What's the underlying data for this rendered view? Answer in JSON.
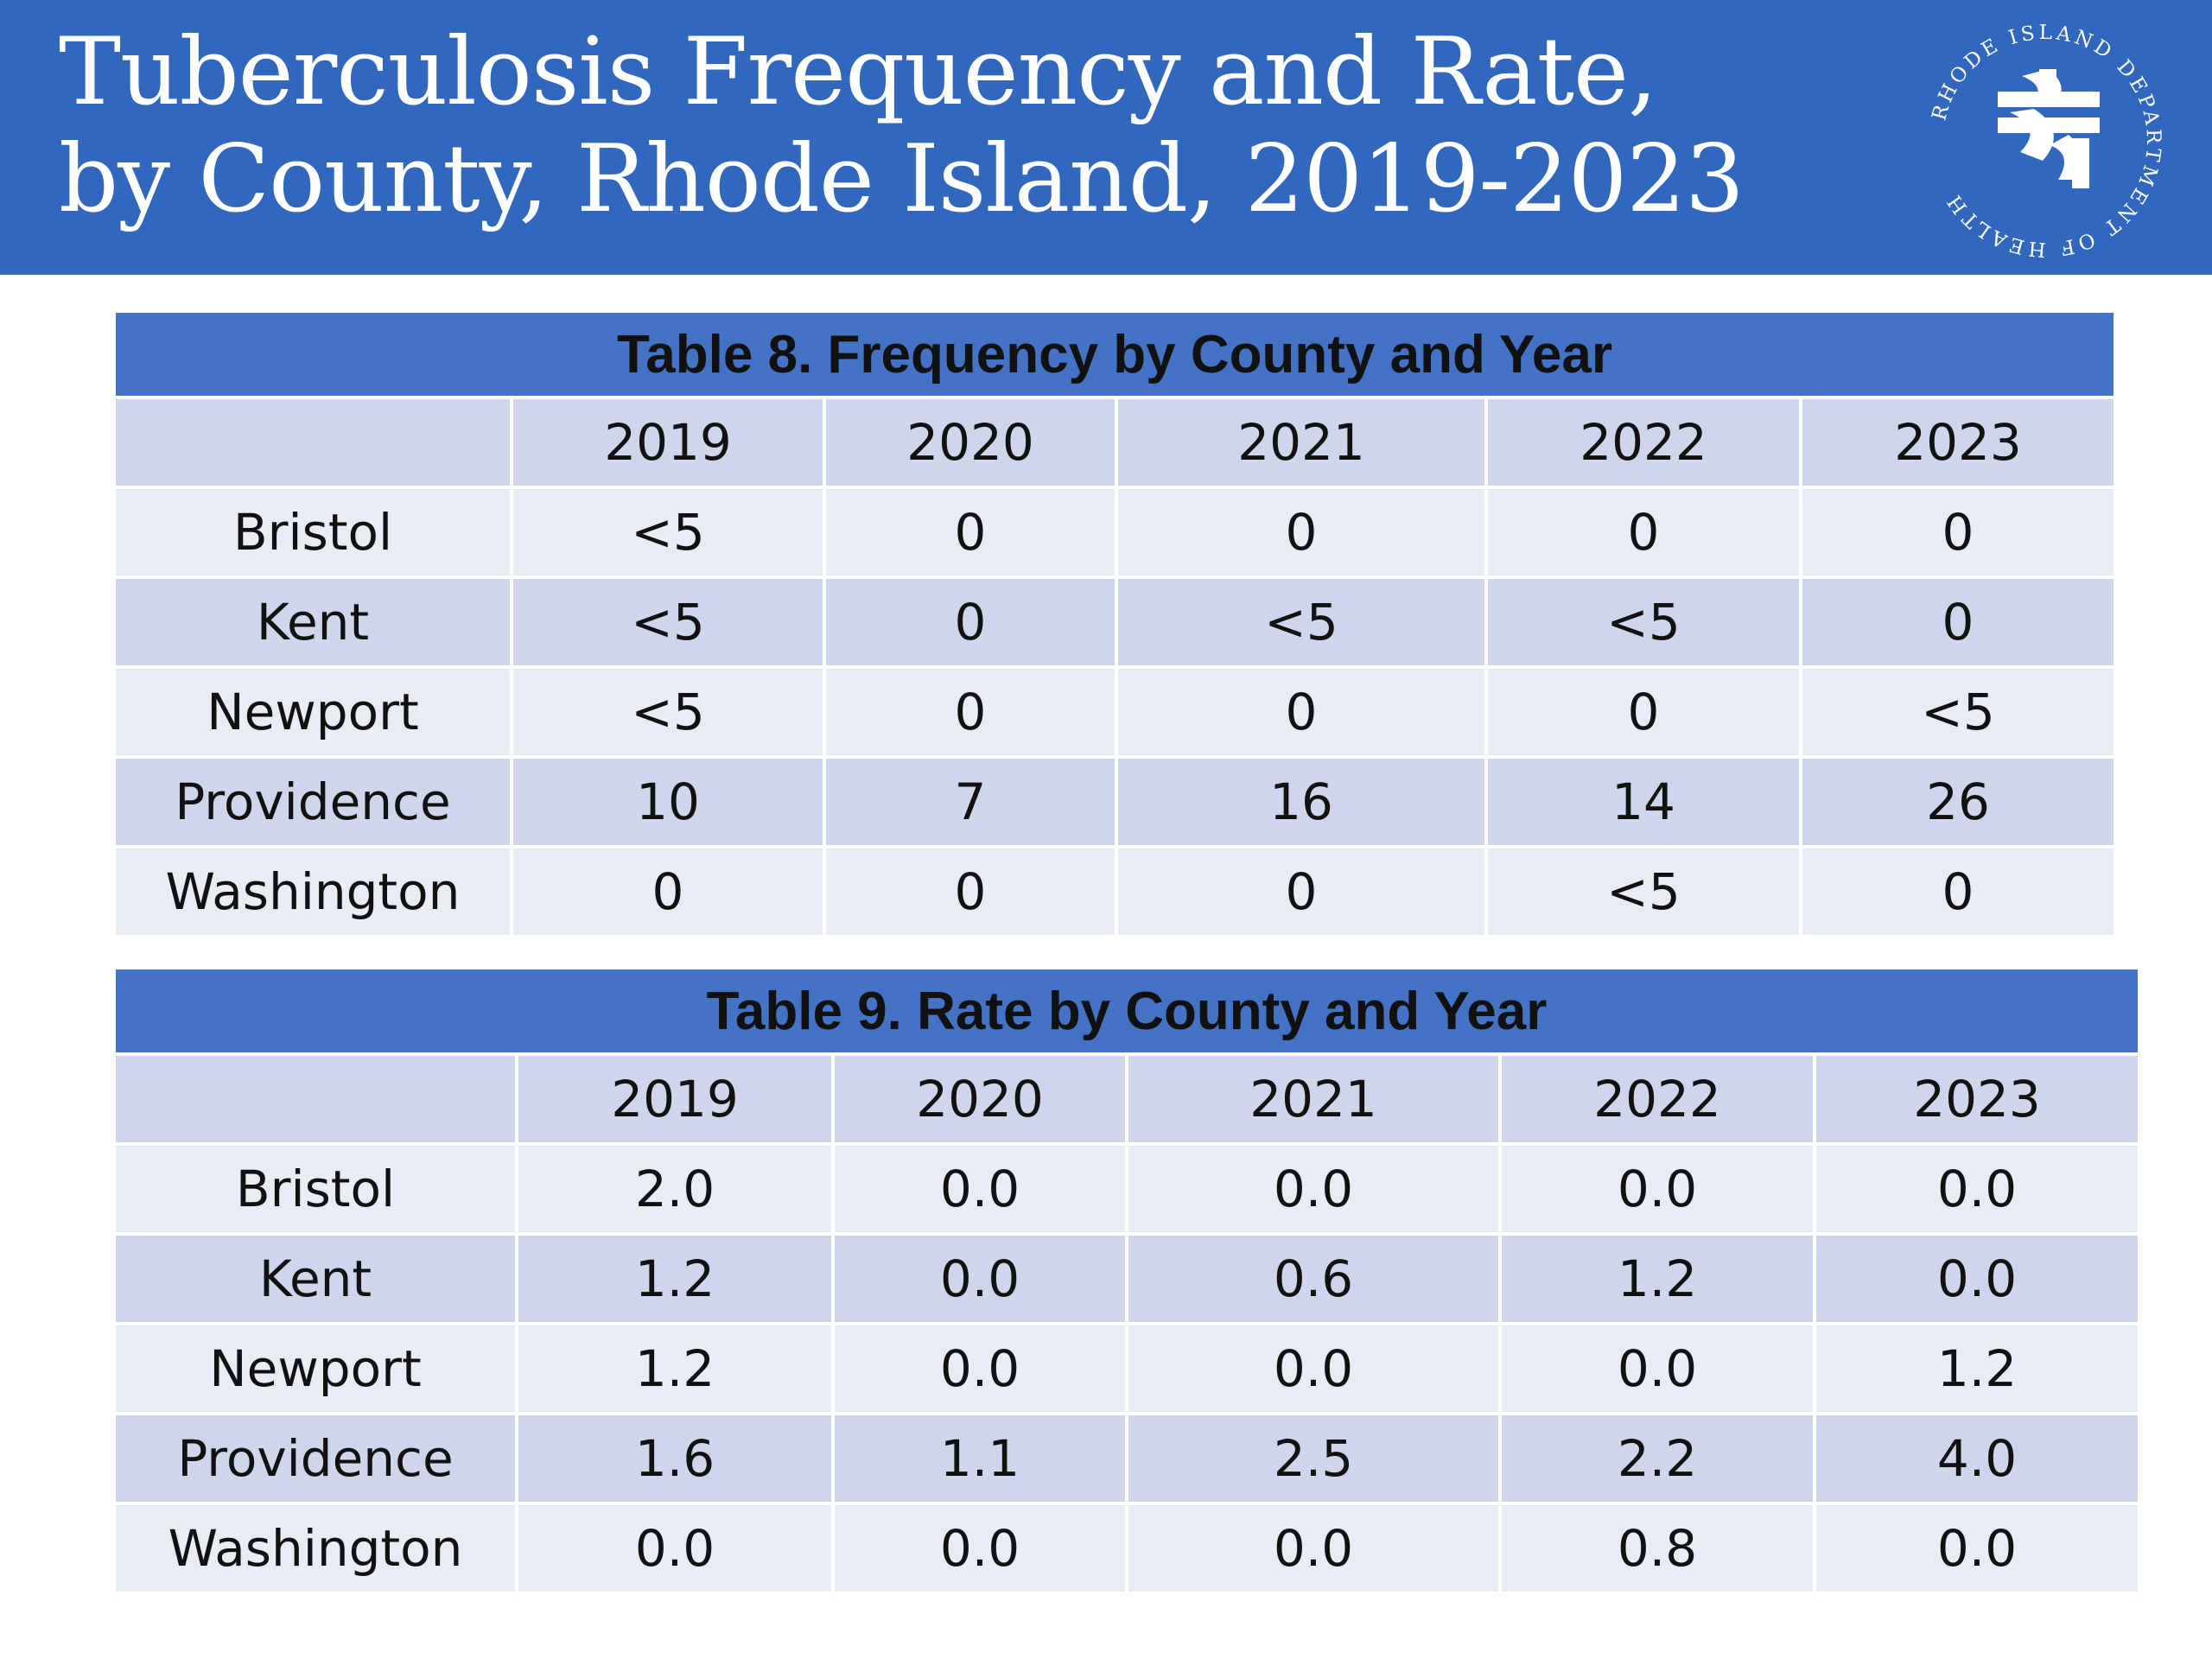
{
  "title": "Tuberculosis Frequency and Rate, by County, Rhode Island, 2019-2023",
  "logo": {
    "icon": "rhode-island-department-of-health-logo",
    "text": "RHODE ISLAND DEPARTMENT OF HEALTH"
  },
  "colors": {
    "header_bg": "#3168bd",
    "caption_bg": "#4472c4",
    "row_dark": "#cfd5ea",
    "row_light": "#e9ebf5"
  },
  "table8": {
    "caption": "Table 8. Frequency by County and Year",
    "years": [
      "2019",
      "2020",
      "2021",
      "2022",
      "2023"
    ],
    "rows": [
      {
        "county": "Bristol",
        "values": [
          "<5",
          "0",
          "0",
          "0",
          "0"
        ]
      },
      {
        "county": "Kent",
        "values": [
          "<5",
          "0",
          "<5",
          "<5",
          "0"
        ]
      },
      {
        "county": "Newport",
        "values": [
          "<5",
          "0",
          "0",
          "0",
          "<5"
        ]
      },
      {
        "county": "Providence",
        "values": [
          "10",
          "7",
          "16",
          "14",
          "26"
        ]
      },
      {
        "county": "Washington",
        "values": [
          "0",
          "0",
          "0",
          "<5",
          "0"
        ]
      }
    ]
  },
  "table9": {
    "caption": "Table 9. Rate by County and Year",
    "years": [
      "2019",
      "2020",
      "2021",
      "2022",
      "2023"
    ],
    "rows": [
      {
        "county": "Bristol",
        "values": [
          "2.0",
          "0.0",
          "0.0",
          "0.0",
          "0.0"
        ]
      },
      {
        "county": "Kent",
        "values": [
          "1.2",
          "0.0",
          "0.6",
          "1.2",
          "0.0"
        ]
      },
      {
        "county": "Newport",
        "values": [
          "1.2",
          "0.0",
          "0.0",
          "0.0",
          "1.2"
        ]
      },
      {
        "county": "Providence",
        "values": [
          "1.6",
          "1.1",
          "2.5",
          "2.2",
          "4.0"
        ]
      },
      {
        "county": "Washington",
        "values": [
          "0.0",
          "0.0",
          "0.0",
          "0.8",
          "0.0"
        ]
      }
    ]
  }
}
